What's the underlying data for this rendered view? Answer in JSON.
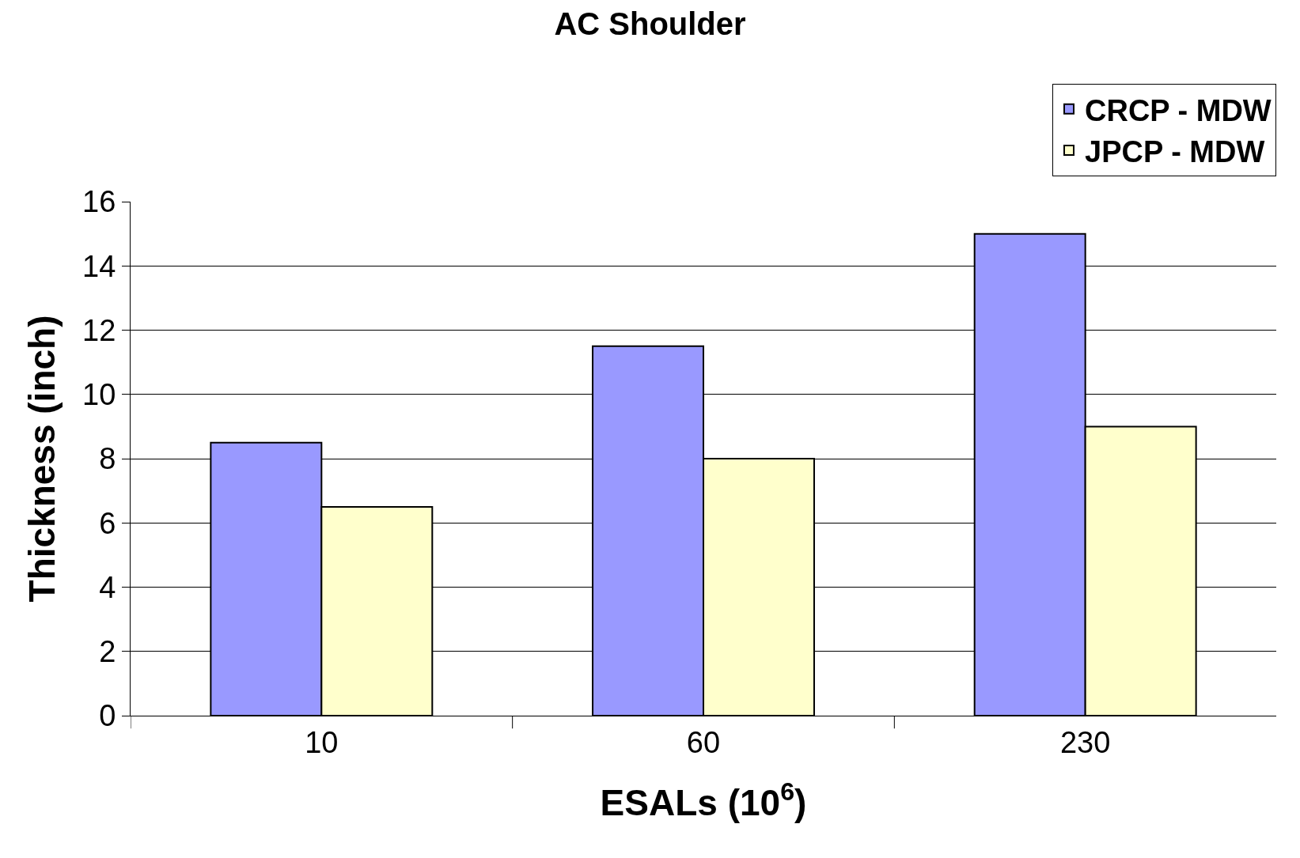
{
  "chart_data": {
    "type": "bar",
    "title": "AC Shoulder",
    "xlabel": "ESALs (10$^{6}$)",
    "ylabel": "Thickness (inch)",
    "categories": [
      "10",
      "60",
      "230"
    ],
    "series": [
      {
        "name": "CRCP - MDW",
        "color": "#9999ff",
        "values": [
          8.5,
          11.5,
          15
        ]
      },
      {
        "name": "JPCP - MDW",
        "color": "#ffffcc",
        "values": [
          6.5,
          8,
          9
        ]
      }
    ],
    "ylim": [
      0,
      16
    ],
    "yticks": [
      0,
      2,
      4,
      6,
      8,
      10,
      12,
      14,
      16
    ],
    "grid": "y",
    "legend": "top right"
  }
}
